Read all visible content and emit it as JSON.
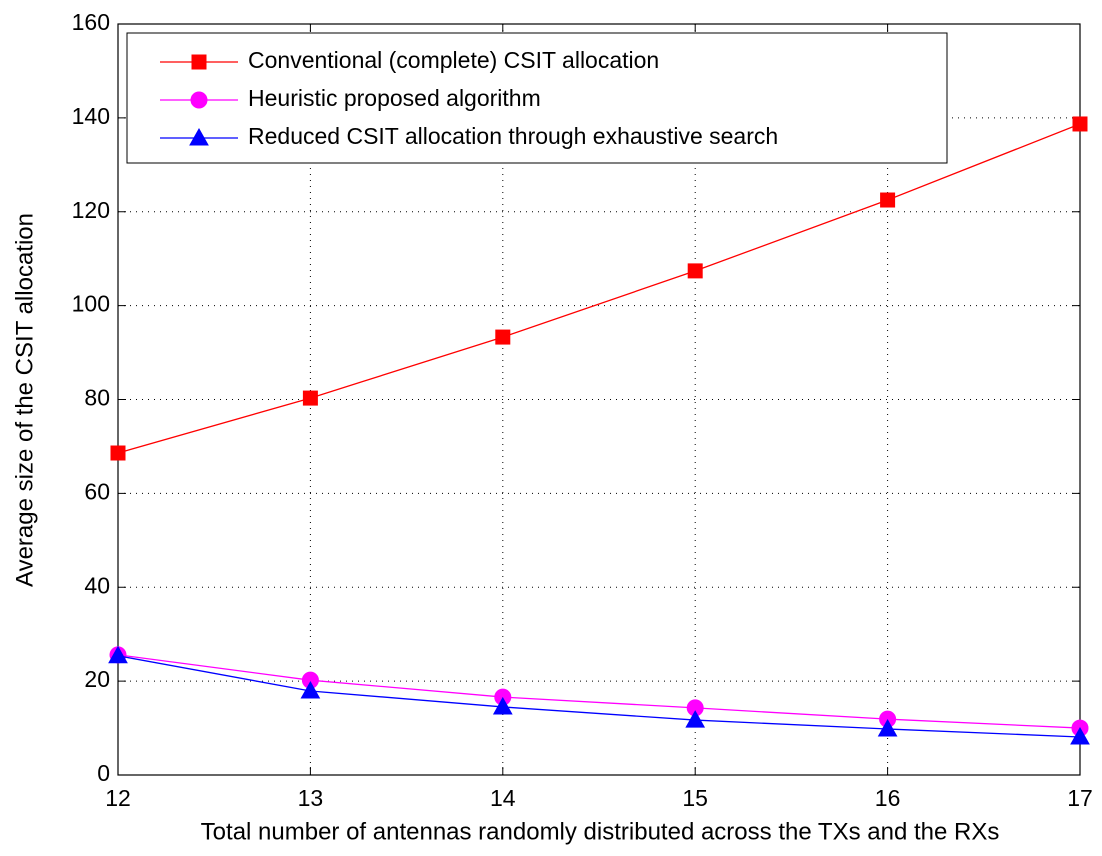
{
  "chart_data": {
    "type": "line",
    "xlabel": "Total number of antennas randomly distributed across the TXs and the RXs",
    "ylabel": "Average size of the CSIT allocation",
    "x": [
      12,
      13,
      14,
      15,
      16,
      17
    ],
    "series": [
      {
        "name": "Conventional (complete) CSIT allocation",
        "color": "#ff0000",
        "marker": "square",
        "values": [
          68.6,
          80.3,
          93.3,
          107.4,
          122.5,
          138.7
        ]
      },
      {
        "name": "Heuristic proposed algorithm",
        "color": "#ff00ff",
        "marker": "circle",
        "values": [
          25.6,
          20.2,
          16.6,
          14.3,
          11.9,
          10.0
        ]
      },
      {
        "name": "Reduced CSIT allocation through exhaustive search",
        "color": "#0000ff",
        "marker": "triangle",
        "values": [
          25.4,
          17.9,
          14.5,
          11.7,
          9.8,
          8.1
        ]
      }
    ],
    "xlim": [
      12,
      17
    ],
    "xticks": [
      12,
      13,
      14,
      15,
      16,
      17
    ],
    "ylim": [
      0,
      160
    ],
    "yticks": [
      0,
      20,
      40,
      60,
      80,
      100,
      120,
      140,
      160
    ],
    "grid": true,
    "legend": "upper left"
  }
}
